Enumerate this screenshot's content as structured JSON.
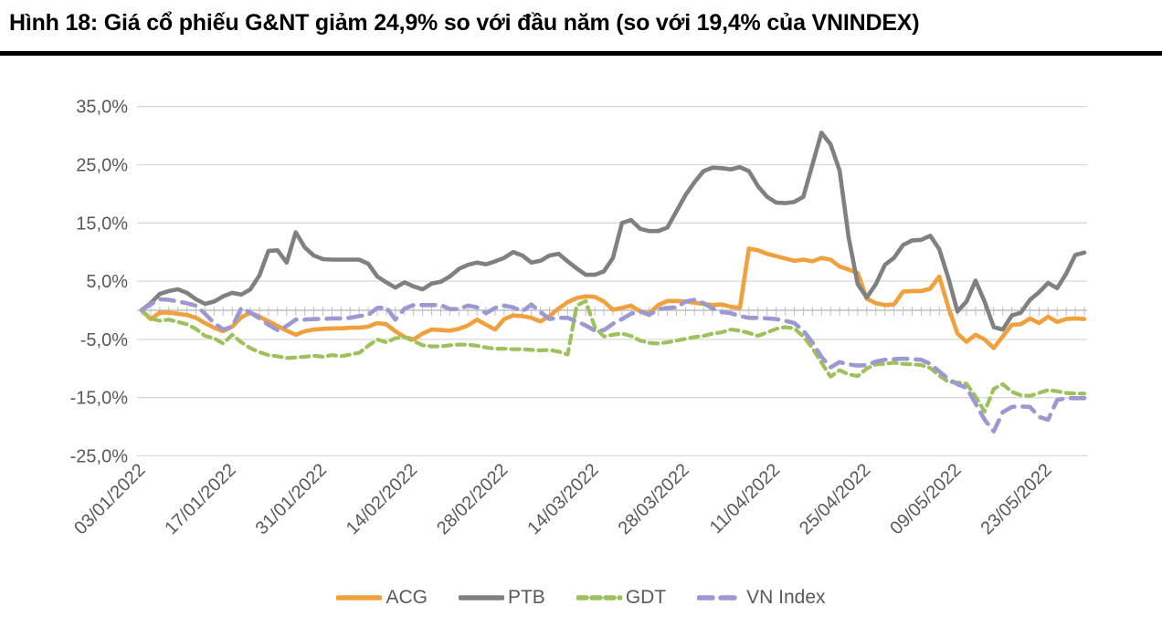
{
  "header": {
    "title": "Hình 18: Giá cổ phiếu G&NT giảm 24,9% so với đầu năm (so với 19,4% của VNINDEX)"
  },
  "chart_data": {
    "type": "line",
    "title": "Hình 18: Giá cổ phiếu G&NT giảm 24,9% so với đầu năm (so với 19,4% của VNINDEX)",
    "xlabel": "",
    "ylabel": "",
    "ylim": [
      -25,
      35
    ],
    "grid": "horizontal",
    "legend_position": "bottom",
    "y_ticks": [
      {
        "label": "35,0%",
        "value": 35
      },
      {
        "label": "25,0%",
        "value": 25
      },
      {
        "label": "15,0%",
        "value": 15
      },
      {
        "label": "5,0%",
        "value": 5
      },
      {
        "label": "-5,0%",
        "value": -5
      },
      {
        "label": "-15,0%",
        "value": -15
      },
      {
        "label": "-25,0%",
        "value": -25
      }
    ],
    "zero_axis_value": 0,
    "x_tick_labels": [
      "03/01/2022",
      "17/01/2022",
      "31/01/2022",
      "14/02/2022",
      "28/02/2022",
      "14/03/2022",
      "28/03/2022",
      "11/04/2022",
      "25/04/2022",
      "09/05/2022",
      "23/05/2022"
    ],
    "trading_days_per_tick": 10,
    "colors": {
      "axis_label": "#595959",
      "gridline": "#d9d9d9",
      "axis_line": "#bfbfbf",
      "title_rule": "#000000"
    },
    "series": [
      {
        "name": "ACG",
        "color": "#F0A03C",
        "line_style": "solid",
        "values": [
          0.0,
          -1.5,
          -0.4,
          -0.4,
          -0.6,
          -0.8,
          -1.3,
          -2.2,
          -3.0,
          -3.6,
          -2.8,
          -1.2,
          -0.4,
          -1.1,
          -1.9,
          -2.7,
          -3.5,
          -4.2,
          -3.6,
          -3.3,
          -3.2,
          -3.1,
          -3.1,
          -3.0,
          -3.0,
          -2.8,
          -2.2,
          -2.4,
          -3.6,
          -4.6,
          -5.0,
          -4.0,
          -3.3,
          -3.4,
          -3.5,
          -3.2,
          -2.6,
          -1.6,
          -2.5,
          -3.3,
          -1.5,
          -0.9,
          -1.0,
          -1.3,
          -1.9,
          -1.0,
          0.3,
          1.4,
          2.1,
          2.4,
          2.3,
          1.5,
          0.1,
          0.4,
          0.8,
          -0.2,
          -0.5,
          0.9,
          1.6,
          1.6,
          1.5,
          1.3,
          1.1,
          0.9,
          1.0,
          0.6,
          0.4,
          10.6,
          10.3,
          9.7,
          9.3,
          8.9,
          8.5,
          8.7,
          8.4,
          9.0,
          8.7,
          7.5,
          7.0,
          6.4,
          2.0,
          1.2,
          0.9,
          1.0,
          3.2,
          3.3,
          3.3,
          3.7,
          5.8,
          0.5,
          -4.0,
          -5.4,
          -4.2,
          -5.0,
          -6.5,
          -4.5,
          -2.5,
          -2.4,
          -1.4,
          -2.2,
          -1.1,
          -2.0,
          -1.5,
          -1.4,
          -1.5
        ]
      },
      {
        "name": "PTB",
        "color": "#808080",
        "line_style": "solid",
        "values": [
          0.0,
          1.2,
          2.8,
          3.3,
          3.6,
          3.0,
          1.9,
          1.1,
          1.5,
          2.4,
          3.0,
          2.7,
          3.6,
          6.0,
          10.2,
          10.3,
          8.2,
          13.4,
          10.8,
          9.4,
          8.8,
          8.7,
          8.7,
          8.7,
          8.7,
          8.0,
          5.8,
          4.8,
          3.9,
          4.8,
          4.1,
          3.6,
          4.6,
          4.9,
          5.8,
          7.1,
          7.8,
          8.2,
          7.9,
          8.4,
          9.0,
          10.0,
          9.4,
          8.2,
          8.5,
          9.4,
          9.7,
          8.4,
          7.2,
          6.1,
          6.1,
          6.7,
          9.0,
          15.0,
          15.5,
          14.0,
          13.6,
          13.6,
          14.2,
          17.0,
          19.8,
          22.0,
          23.9,
          24.5,
          24.4,
          24.2,
          24.6,
          23.9,
          21.3,
          19.5,
          18.5,
          18.4,
          18.6,
          19.5,
          25.0,
          30.5,
          28.5,
          24.0,
          12.5,
          4.5,
          2.2,
          4.5,
          7.8,
          9.0,
          11.2,
          12.0,
          12.1,
          12.8,
          10.5,
          5.5,
          -0.2,
          1.5,
          5.1,
          1.5,
          -2.9,
          -3.3,
          -0.9,
          -0.4,
          1.8,
          3.1,
          4.7,
          3.8,
          6.3,
          9.5,
          9.9
        ]
      },
      {
        "name": "GDT",
        "color": "#9DC25B",
        "line_style": "dashed",
        "values": [
          0.0,
          -1.4,
          -1.8,
          -1.6,
          -2.0,
          -2.4,
          -3.2,
          -4.4,
          -4.8,
          -5.7,
          -4.2,
          -5.5,
          -6.5,
          -7.2,
          -7.7,
          -7.9,
          -8.2,
          -8.1,
          -8.0,
          -7.8,
          -8.0,
          -7.7,
          -7.9,
          -7.6,
          -7.3,
          -6.1,
          -5.0,
          -5.5,
          -4.8,
          -4.6,
          -5.3,
          -6.0,
          -6.2,
          -6.2,
          -6.0,
          -5.9,
          -5.9,
          -6.1,
          -6.4,
          -6.6,
          -6.6,
          -6.7,
          -6.7,
          -6.8,
          -6.9,
          -6.8,
          -7.1,
          -7.6,
          0.8,
          1.6,
          -2.9,
          -4.5,
          -4.2,
          -4.0,
          -4.4,
          -5.2,
          -5.6,
          -5.7,
          -5.5,
          -5.2,
          -4.9,
          -4.6,
          -4.4,
          -4.0,
          -3.8,
          -3.3,
          -3.5,
          -3.9,
          -4.4,
          -3.8,
          -3.2,
          -2.9,
          -3.1,
          -4.5,
          -6.5,
          -9.0,
          -11.4,
          -10.3,
          -11.0,
          -11.3,
          -10.0,
          -9.3,
          -9.2,
          -9.0,
          -9.2,
          -9.3,
          -9.4,
          -9.9,
          -11.2,
          -12.3,
          -12.4,
          -12.6,
          -14.8,
          -17.4,
          -13.5,
          -12.7,
          -14.0,
          -14.6,
          -14.7,
          -14.2,
          -13.7,
          -13.9,
          -14.2,
          -14.3,
          -14.3
        ]
      },
      {
        "name": "VN Index",
        "color": "#9B99D1",
        "line_style": "long-dashed",
        "values": [
          0.0,
          1.0,
          1.9,
          1.8,
          1.5,
          1.2,
          0.8,
          -0.6,
          -2.2,
          -3.3,
          -2.8,
          0.4,
          -0.4,
          -1.4,
          -2.5,
          -3.4,
          -2.7,
          -1.6,
          -1.6,
          -1.5,
          -1.5,
          -1.4,
          -1.4,
          -1.3,
          -1.0,
          -0.8,
          0.4,
          0.5,
          -1.6,
          0.3,
          0.9,
          0.9,
          0.9,
          0.9,
          0.2,
          0.2,
          0.8,
          0.5,
          -0.5,
          0.4,
          0.8,
          0.5,
          -0.2,
          1.0,
          -0.3,
          -1.5,
          -1.3,
          -1.3,
          -1.9,
          -2.6,
          -3.5,
          -3.4,
          -2.3,
          -1.5,
          -0.6,
          -0.2,
          -0.8,
          0.2,
          0.4,
          0.5,
          1.5,
          1.8,
          1.2,
          0.3,
          -0.3,
          -0.5,
          -1.0,
          -1.3,
          -1.3,
          -1.4,
          -1.5,
          -1.8,
          -2.2,
          -3.5,
          -5.5,
          -8.0,
          -9.8,
          -8.9,
          -9.3,
          -9.5,
          -9.4,
          -8.8,
          -8.5,
          -8.4,
          -8.3,
          -8.4,
          -8.5,
          -9.2,
          -10.5,
          -11.8,
          -12.7,
          -13.3,
          -16.0,
          -18.8,
          -20.8,
          -17.5,
          -16.6,
          -16.5,
          -16.6,
          -18.3,
          -18.8,
          -15.4,
          -15.1,
          -15.1,
          -15.1
        ]
      }
    ]
  }
}
